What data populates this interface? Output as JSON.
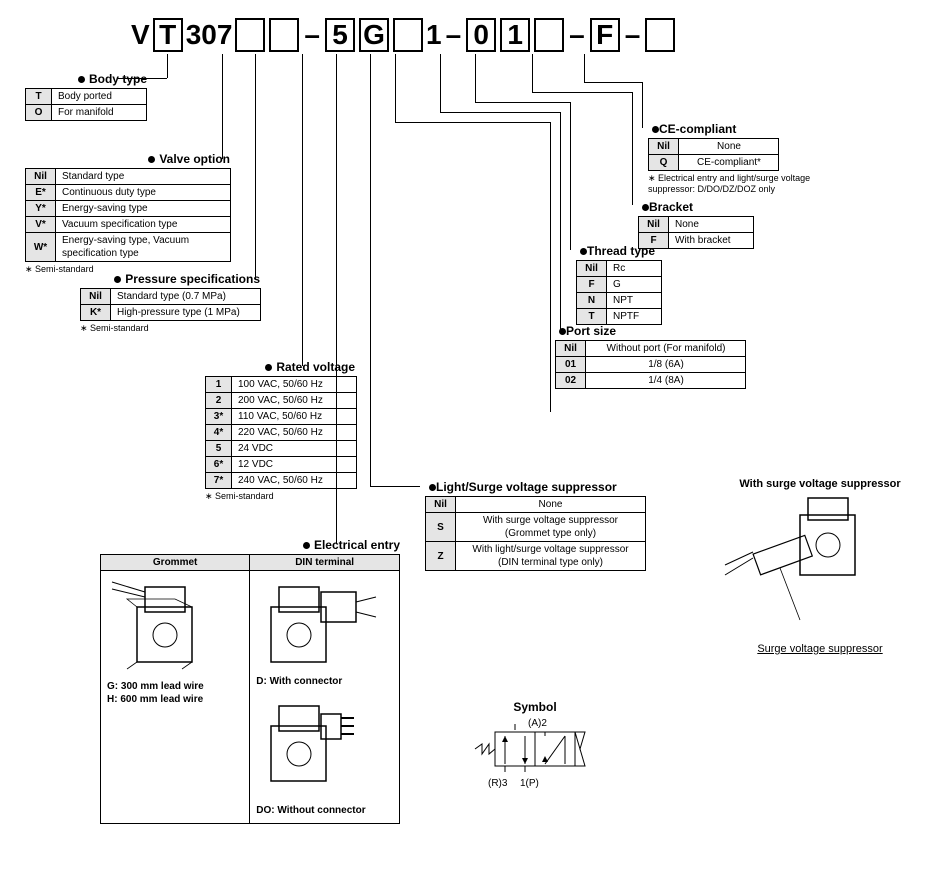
{
  "partNumber": {
    "segments": [
      {
        "type": "txt",
        "v": "V"
      },
      {
        "type": "box",
        "v": "T"
      },
      {
        "type": "txt",
        "v": "307"
      },
      {
        "type": "box",
        "v": ""
      },
      {
        "type": "box",
        "v": ""
      },
      {
        "type": "dash",
        "v": "–"
      },
      {
        "type": "box",
        "v": "5"
      },
      {
        "type": "box",
        "v": "G"
      },
      {
        "type": "box",
        "v": ""
      },
      {
        "type": "txt",
        "v": "1"
      },
      {
        "type": "dash",
        "v": "–"
      },
      {
        "type": "box",
        "v": "0"
      },
      {
        "type": "box",
        "v": "1"
      },
      {
        "type": "box",
        "v": ""
      },
      {
        "type": "dash",
        "v": "–"
      },
      {
        "type": "box",
        "v": "F"
      },
      {
        "type": "dash",
        "v": "–"
      },
      {
        "type": "box",
        "v": ""
      }
    ]
  },
  "bodyType": {
    "title": "Body type",
    "rows": [
      [
        "T",
        "Body ported"
      ],
      [
        "O",
        "For manifold"
      ]
    ],
    "col1w": "26px",
    "col2w": "95px"
  },
  "valveOption": {
    "title": "Valve option",
    "rows": [
      [
        "Nil",
        "Standard type"
      ],
      [
        "E*",
        "Continuous duty type"
      ],
      [
        "Y*",
        "Energy-saving type"
      ],
      [
        "V*",
        "Vacuum specification type"
      ],
      [
        "W*",
        "Energy-saving type, Vacuum specification type"
      ]
    ],
    "note": "∗ Semi-standard",
    "col1w": "30px",
    "col2w": "175px"
  },
  "pressure": {
    "title": "Pressure specifications",
    "rows": [
      [
        "Nil",
        "Standard type (0.7 MPa)"
      ],
      [
        "K*",
        "High-pressure type (1 MPa)"
      ]
    ],
    "note": "∗ Semi-standard",
    "col1w": "30px",
    "col2w": "150px"
  },
  "voltage": {
    "title": "Rated voltage",
    "rows": [
      [
        "1",
        "100 VAC, 50/60 Hz"
      ],
      [
        "2",
        "200 VAC, 50/60 Hz"
      ],
      [
        "3*",
        "110 VAC, 50/60 Hz"
      ],
      [
        "4*",
        "220 VAC, 50/60 Hz"
      ],
      [
        "5",
        "24 VDC"
      ],
      [
        "6*",
        "12 VDC"
      ],
      [
        "7*",
        "240 VAC, 50/60 Hz"
      ]
    ],
    "note": "∗ Semi-standard",
    "col1w": "26px",
    "col2w": "125px"
  },
  "ce": {
    "title": "CE-compliant",
    "rows": [
      [
        "Nil",
        "None"
      ],
      [
        "Q",
        "CE-compliant*"
      ]
    ],
    "note": "∗ Electrical entry and light/surge voltage suppressor: D/DO/DZ/DOZ only",
    "col1w": "30px",
    "col2w": "100px"
  },
  "bracket": {
    "title": "Bracket",
    "rows": [
      [
        "Nil",
        "None"
      ],
      [
        "F",
        "With bracket"
      ]
    ],
    "col1w": "30px",
    "col2w": "85px"
  },
  "thread": {
    "title": "Thread type",
    "rows": [
      [
        "Nil",
        "Rc"
      ],
      [
        "F",
        "G"
      ],
      [
        "N",
        "NPT"
      ],
      [
        "T",
        "NPTF"
      ]
    ],
    "col1w": "30px",
    "col2w": "55px"
  },
  "port": {
    "title": "Port size",
    "rows": [
      [
        "Nil",
        "Without port (For manifold)"
      ],
      [
        "01",
        "1/8 (6A)"
      ],
      [
        "02",
        "1/4 (8A)"
      ]
    ],
    "col1w": "30px",
    "col2w": "160px"
  },
  "suppressor": {
    "title": "Light/Surge voltage suppressor",
    "rows": [
      [
        "Nil",
        "None"
      ],
      [
        "S",
        "With surge voltage suppressor (Grommet type only)"
      ],
      [
        "Z",
        "With light/surge voltage suppressor (DIN terminal type only)"
      ]
    ],
    "col1w": "30px",
    "col2w": "190px"
  },
  "elecEntry": {
    "title": "Electrical entry",
    "headers": [
      "Grommet",
      "DIN terminal"
    ],
    "g1": "G: 300 mm lead wire",
    "g2": "H: 600 mm lead wire",
    "d1": "D: With connector",
    "d2": "DO: Without connector"
  },
  "surgeFig": {
    "title": "With surge voltage suppressor",
    "label": "Surge voltage suppressor"
  },
  "symbol": {
    "title": "Symbol",
    "a": "(A)2",
    "r": "(R)3",
    "p": "1(P)"
  },
  "colors": {
    "headerBg": "#e5e5e5",
    "border": "#000"
  }
}
